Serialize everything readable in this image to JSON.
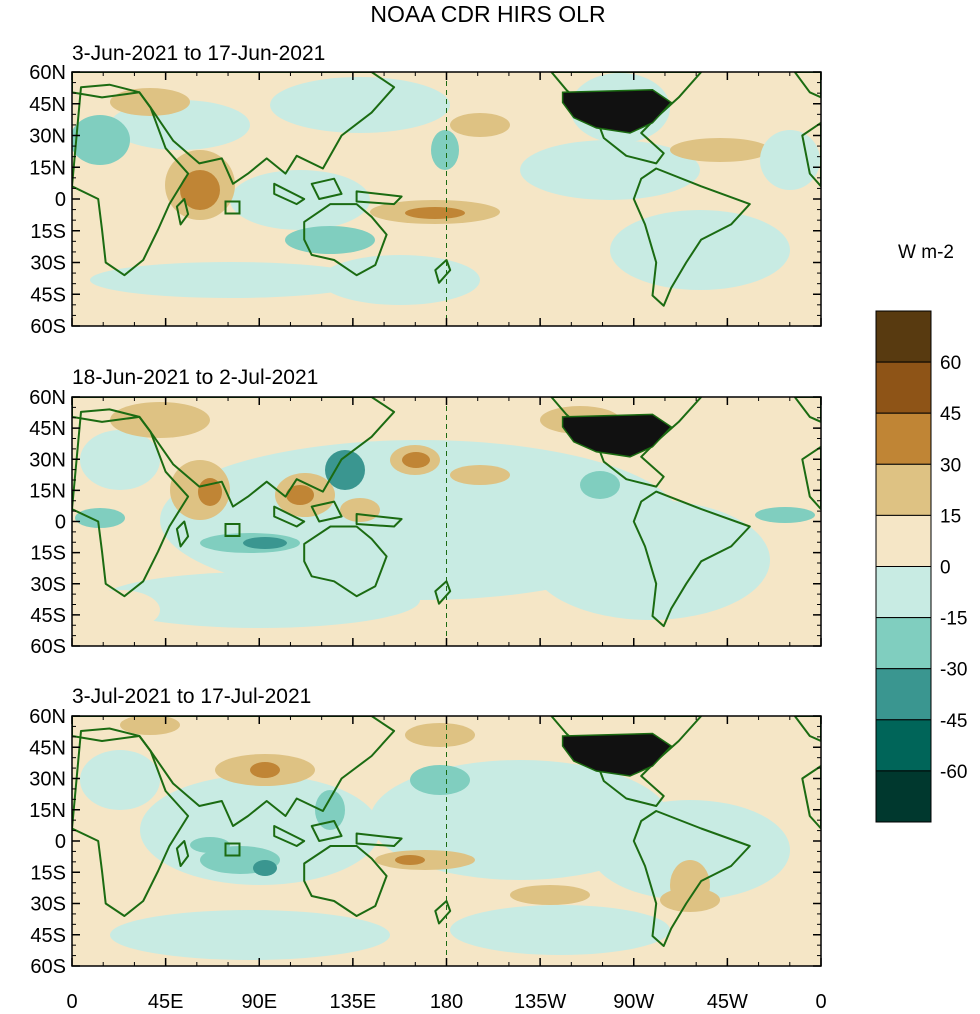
{
  "figure": {
    "title": "NOAA CDR HIRS OLR"
  },
  "panels": [
    {
      "subtitle": "3-Jun-2021 to 17-Jun-2021"
    },
    {
      "subtitle": "18-Jun-2021 to 2-Jul-2021"
    },
    {
      "subtitle": "3-Jul-2021 to 17-Jul-2021"
    }
  ],
  "lat_labels": [
    "60N",
    "45N",
    "30N",
    "15N",
    "0",
    "15S",
    "30S",
    "45S",
    "60S"
  ],
  "lon_labels": [
    "0",
    "45E",
    "90E",
    "135E",
    "180",
    "135W",
    "90W",
    "45W",
    "0"
  ],
  "colorbar": {
    "units": "W m-2",
    "levels": [
      "60",
      "45",
      "30",
      "15",
      "0",
      "-15",
      "-30",
      "-45",
      "-60"
    ],
    "colors": [
      "#583a10",
      "#8e5417",
      "#c08535",
      "#dec283",
      "#f5e6c6",
      "#c8ebe3",
      "#80cebf",
      "#3a9690",
      "#006559",
      "#00382e"
    ]
  },
  "map_colors": {
    "base": "#f5e6c6",
    "coast": "#1b6b12",
    "usa_fill": "#111111"
  }
}
